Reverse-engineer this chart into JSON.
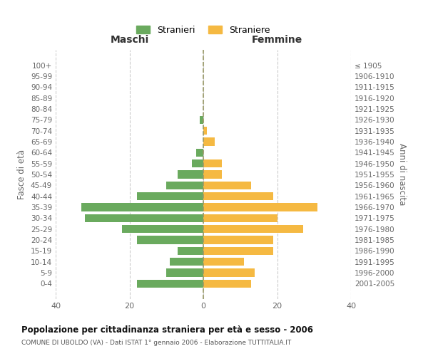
{
  "age_groups": [
    "0-4",
    "5-9",
    "10-14",
    "15-19",
    "20-24",
    "25-29",
    "30-34",
    "35-39",
    "40-44",
    "45-49",
    "50-54",
    "55-59",
    "60-64",
    "65-69",
    "70-74",
    "75-79",
    "80-84",
    "85-89",
    "90-94",
    "95-99",
    "100+"
  ],
  "birth_years": [
    "2001-2005",
    "1996-2000",
    "1991-1995",
    "1986-1990",
    "1981-1985",
    "1976-1980",
    "1971-1975",
    "1966-1970",
    "1961-1965",
    "1956-1960",
    "1951-1955",
    "1946-1950",
    "1941-1945",
    "1936-1940",
    "1931-1935",
    "1926-1930",
    "1921-1925",
    "1916-1920",
    "1911-1915",
    "1906-1910",
    "≤ 1905"
  ],
  "males": [
    18,
    10,
    9,
    7,
    18,
    22,
    32,
    33,
    18,
    10,
    7,
    3,
    2,
    0,
    0,
    1,
    0,
    0,
    0,
    0,
    0
  ],
  "females": [
    13,
    14,
    11,
    19,
    19,
    27,
    20,
    31,
    19,
    13,
    5,
    5,
    0,
    3,
    1,
    0,
    0,
    0,
    0,
    0,
    0
  ],
  "male_color": "#6aaa5e",
  "female_color": "#f5b942",
  "background_color": "#ffffff",
  "grid_color": "#cccccc",
  "title": "Popolazione per cittadinanza straniera per età e sesso - 2006",
  "subtitle": "COMUNE DI UBOLDO (VA) - Dati ISTAT 1° gennaio 2006 - Elaborazione TUTTITALIA.IT",
  "xlabel_left": "Maschi",
  "xlabel_right": "Femmine",
  "ylabel_left": "Fasce di età",
  "ylabel_right": "Anni di nascita",
  "legend_male": "Stranieri",
  "legend_female": "Straniere",
  "xlim": 40,
  "bar_height": 0.75
}
